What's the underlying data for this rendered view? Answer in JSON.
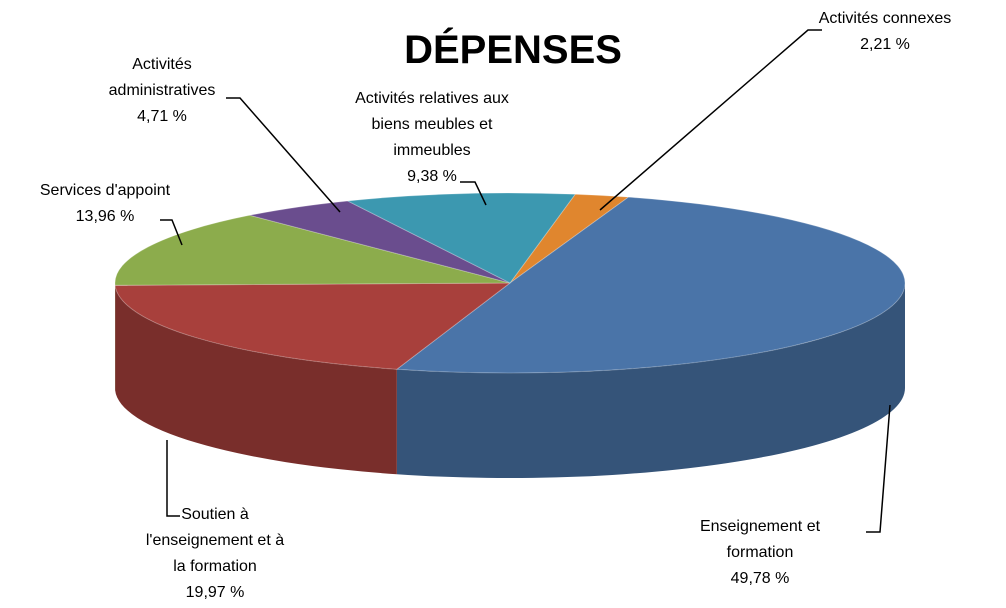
{
  "chart_data": {
    "type": "pie3d",
    "title": "DÉPENSES",
    "categories": [
      "Activités connexes",
      "Enseignement et formation",
      "Soutien à l'enseignement et à la formation",
      "Services d'appoint",
      "Activités administratives",
      "Activités relatives aux biens meubles et immeubles"
    ],
    "values": [
      2.21,
      49.78,
      19.97,
      13.96,
      4.71,
      9.38
    ],
    "value_labels": [
      "2,21 %",
      "49,78 %",
      "19,97 %",
      "13,96 %",
      "4,71 %",
      "9,38 %"
    ],
    "colors": [
      "#e0862e",
      "#4a74a8",
      "#a8403c",
      "#8cac4c",
      "#6a4d8e",
      "#3c98b0"
    ]
  }
}
